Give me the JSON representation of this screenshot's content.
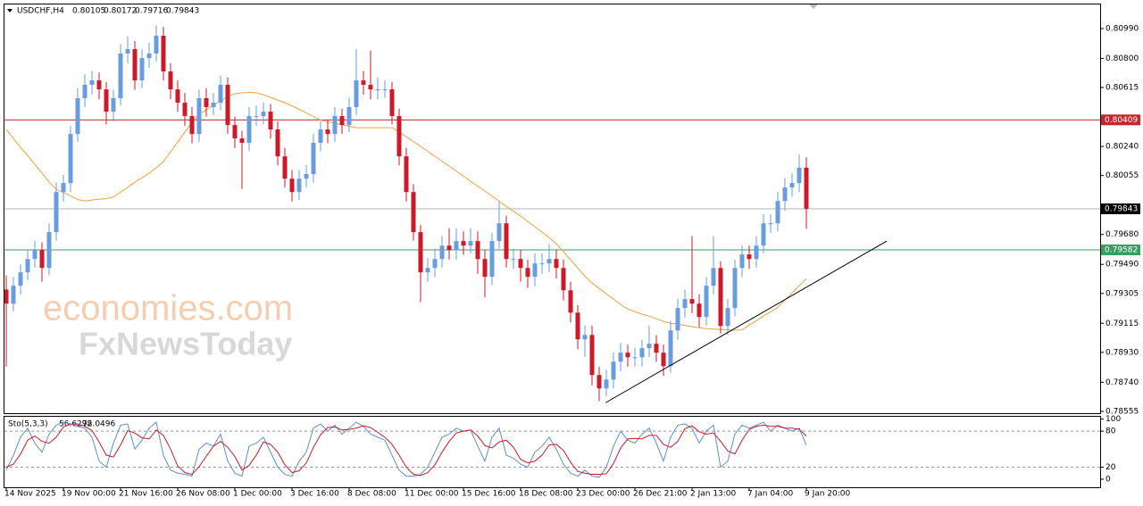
{
  "chart_data": {
    "type": "candlestick",
    "title": "USDCHF,H4",
    "categories": [
      "14 Nov 2025",
      null,
      null,
      null,
      null,
      null,
      null,
      null,
      "19 Nov 00:00",
      null,
      null,
      null,
      null,
      null,
      null,
      null,
      "21 Nov 16:00",
      null,
      null,
      null,
      null,
      null,
      null,
      null,
      "26 Nov 08:00",
      null,
      null,
      null,
      null,
      null,
      null,
      null,
      "1 Dec 00:00",
      null,
      null,
      null,
      null,
      null,
      null,
      null,
      "3 Dec 16:00",
      null,
      null,
      null,
      null,
      null,
      null,
      null,
      "8 Dec 08:00",
      null,
      null,
      null,
      null,
      null,
      null,
      null,
      "11 Dec 00:00",
      null,
      null,
      null,
      null,
      null,
      null,
      null,
      "15 Dec 16:00",
      null,
      null,
      null,
      null,
      null,
      null,
      null,
      "18 Dec 08:00",
      null,
      null,
      null,
      null,
      null,
      null,
      null,
      "23 Dec 00:00",
      null,
      null,
      null,
      null,
      null,
      null,
      null,
      "26 Dec 21:00",
      null,
      null,
      null,
      null,
      null,
      null,
      null,
      "2 Jan 13:00",
      null,
      null,
      null,
      null,
      null,
      null,
      null,
      "7 Jan 04:00",
      null,
      null,
      null,
      null,
      null,
      null,
      null,
      "9 Jan 20:00"
    ],
    "open": [
      0.7933,
      0.7924,
      0.79354,
      0.79439,
      0.79524,
      0.79581,
      0.79467,
      0.79695,
      0.7995,
      0.80007,
      0.80319,
      0.80547,
      0.80632,
      0.8066,
      0.80603,
      0.80461,
      0.80547,
      0.80831,
      0.80859,
      0.8066,
      0.80802,
      0.80831,
      0.80944,
      0.80717,
      0.80603,
      0.80518,
      0.80433,
      0.80319,
      0.80547,
      0.8049,
      0.80518,
      0.80632,
      0.80376,
      0.80291,
      0.80263,
      0.80433,
      0.80433,
      0.80461,
      0.80348,
      0.80177,
      0.80035,
      0.7995,
      0.80035,
      0.80064,
      0.80263,
      0.80348,
      0.80319,
      0.80433,
      0.80376,
      0.8049,
      0.8066,
      0.80632,
      0.80603,
      0.80603,
      0.80603,
      0.80433,
      0.80177,
      0.7995,
      0.79695,
      0.79439,
      0.79467,
      0.79524,
      0.79609,
      0.79581,
      0.79638,
      0.79609,
      0.79638,
      0.79524,
      0.79411,
      0.79638,
      0.79751,
      0.79524,
      0.79524,
      0.79467,
      0.79411,
      0.79496,
      0.79496,
      0.79524,
      0.79467,
      0.79325,
      0.79183,
      0.79013,
      0.79041,
      0.78786,
      0.78701,
      0.78757,
      0.78871,
      0.78928,
      0.78899,
      0.78899,
      0.78957,
      0.78985,
      0.78928,
      0.78843,
      0.7907,
      0.79212,
      0.79269,
      0.7924,
      0.79155,
      0.79354,
      0.79467,
      0.79098,
      0.79212,
      0.79467,
      0.79553,
      0.79524,
      0.79609,
      0.79751,
      0.79751,
      0.79893,
      0.79979,
      0.80007,
      0.80105
    ],
    "high": [
      0.7942,
      0.7941,
      0.7949,
      0.7958,
      0.7964,
      0.7963,
      0.7975,
      0.8001,
      0.8006,
      0.8037,
      0.8061,
      0.807,
      0.8072,
      0.8071,
      0.8065,
      0.806,
      0.8089,
      0.8094,
      0.8091,
      0.8086,
      0.809,
      0.8101,
      0.81,
      0.8077,
      0.8066,
      0.8058,
      0.8049,
      0.806,
      0.8061,
      0.8058,
      0.8069,
      0.8068,
      0.8043,
      0.8034,
      0.8049,
      0.805,
      0.8052,
      0.8051,
      0.804,
      0.8023,
      0.8009,
      0.8009,
      0.8012,
      0.8032,
      0.804,
      0.8041,
      0.8049,
      0.8048,
      0.8055,
      0.8086,
      0.8072,
      0.8085,
      0.8068,
      0.8066,
      0.8065,
      0.8048,
      0.8023,
      0.8,
      0.7974,
      0.7953,
      0.7959,
      0.7967,
      0.7972,
      0.7972,
      0.797,
      0.7972,
      0.797,
      0.7958,
      0.7969,
      0.7989,
      0.798,
      0.7959,
      0.7958,
      0.7952,
      0.7956,
      0.7956,
      0.7962,
      0.7958,
      0.7952,
      0.7938,
      0.7923,
      0.791,
      0.791,
      0.7884,
      0.7882,
      0.7893,
      0.7899,
      0.7898,
      0.7896,
      0.7901,
      0.791,
      0.7904,
      0.7898,
      0.7913,
      0.7927,
      0.7933,
      0.7967,
      0.793,
      0.7941,
      0.7967,
      0.7951,
      0.7927,
      0.7952,
      0.7961,
      0.7961,
      0.7967,
      0.7981,
      0.7981,
      0.7995,
      0.8004,
      0.8007,
      0.8019,
      0.80172
    ],
    "low": [
      0.7884,
      0.7919,
      0.793,
      0.7939,
      0.7947,
      0.7938,
      0.7942,
      0.7964,
      0.7989,
      0.7995,
      0.8027,
      0.8049,
      0.8057,
      0.8054,
      0.8038,
      0.804,
      0.805,
      0.8077,
      0.806,
      0.8061,
      0.8074,
      0.8078,
      0.8066,
      0.8054,
      0.8046,
      0.8037,
      0.8026,
      0.8027,
      0.8043,
      0.8044,
      0.8047,
      0.8032,
      0.8023,
      0.7997,
      0.8021,
      0.8037,
      0.8038,
      0.8029,
      0.8012,
      0.7998,
      0.7989,
      0.799,
      0.7998,
      0.8001,
      0.8021,
      0.8026,
      0.8027,
      0.8032,
      0.8033,
      0.8044,
      0.8057,
      0.8054,
      0.8054,
      0.8055,
      0.8038,
      0.8012,
      0.7989,
      0.7964,
      0.7925,
      0.7938,
      0.7941,
      0.7947,
      0.7952,
      0.7952,
      0.7955,
      0.7956,
      0.7943,
      0.7928,
      0.7936,
      0.7959,
      0.7947,
      0.7946,
      0.7938,
      0.7934,
      0.7935,
      0.7943,
      0.7944,
      0.794,
      0.7926,
      0.7912,
      0.7895,
      0.789,
      0.7872,
      0.7862,
      0.7865,
      0.787,
      0.7881,
      0.7884,
      0.7884,
      0.7884,
      0.789,
      0.7887,
      0.7878,
      0.788,
      0.7901,
      0.7915,
      0.7918,
      0.7909,
      0.791,
      0.793,
      0.7905,
      0.7904,
      0.7916,
      0.7941,
      0.7946,
      0.7947,
      0.7956,
      0.7969,
      0.797,
      0.7983,
      0.7992,
      0.7995,
      0.79716
    ],
    "close": [
      0.7924,
      0.79354,
      0.79439,
      0.79524,
      0.79581,
      0.79467,
      0.79695,
      0.7995,
      0.80007,
      0.80319,
      0.80547,
      0.80632,
      0.8066,
      0.80603,
      0.80461,
      0.80547,
      0.80831,
      0.80859,
      0.8066,
      0.80802,
      0.80831,
      0.80944,
      0.80717,
      0.80603,
      0.80518,
      0.80433,
      0.80319,
      0.80547,
      0.8049,
      0.80518,
      0.80632,
      0.80376,
      0.80291,
      0.80263,
      0.80433,
      0.80433,
      0.80461,
      0.80348,
      0.80177,
      0.80035,
      0.7995,
      0.80035,
      0.80064,
      0.80263,
      0.80348,
      0.80319,
      0.80433,
      0.80376,
      0.8049,
      0.8066,
      0.80632,
      0.80603,
      0.80603,
      0.80603,
      0.80433,
      0.80177,
      0.7995,
      0.79695,
      0.79439,
      0.79467,
      0.79524,
      0.79609,
      0.79581,
      0.79638,
      0.79609,
      0.79638,
      0.79524,
      0.79411,
      0.79638,
      0.79751,
      0.79524,
      0.79524,
      0.79467,
      0.79411,
      0.79496,
      0.79496,
      0.79524,
      0.79467,
      0.79325,
      0.79183,
      0.79013,
      0.79041,
      0.78786,
      0.78701,
      0.78757,
      0.78871,
      0.78928,
      0.78899,
      0.78899,
      0.78957,
      0.78985,
      0.78928,
      0.78843,
      0.7907,
      0.79212,
      0.79269,
      0.7924,
      0.79155,
      0.79354,
      0.79467,
      0.79098,
      0.79212,
      0.79467,
      0.79553,
      0.79524,
      0.79609,
      0.79751,
      0.79751,
      0.79893,
      0.79979,
      0.80007,
      0.80105,
      0.79843
    ],
    "up_color": "#6a9ce0",
    "down_color": "#cc1a2a",
    "ylim": [
      0.78549,
      0.81143
    ],
    "yticks": [
      {
        "value": 0.8099,
        "label": "0.80990"
      },
      {
        "value": 0.808,
        "label": "0.80800"
      },
      0.80615,
      {
        "value": 0.8024,
        "label": "0.80240"
      },
      0.80055,
      {
        "value": 0.7968,
        "label": "0.79680"
      },
      {
        "value": 0.7949,
        "label": "0.79490"
      },
      0.79305,
      0.79115,
      {
        "value": 0.7893,
        "label": "0.78930"
      },
      {
        "value": 0.7874,
        "label": "0.78740"
      },
      0.78555
    ],
    "moving_average": {
      "color": "#f0a040",
      "values": [
        0.80348,
        0.80291,
        0.80234,
        0.80183,
        0.80126,
        0.8007,
        0.80013,
        0.79967,
        0.79947,
        0.79925,
        0.79902,
        0.79893,
        0.79899,
        0.79905,
        0.79908,
        0.79918,
        0.7995,
        0.79979,
        0.80013,
        0.80041,
        0.8007,
        0.80104,
        0.80143,
        0.80206,
        0.80268,
        0.80331,
        0.80393,
        0.80444,
        0.80473,
        0.80501,
        0.8053,
        0.80558,
        0.80575,
        0.80581,
        0.80584,
        0.80582,
        0.80569,
        0.80552,
        0.80535,
        0.80518,
        0.80498,
        0.80476,
        0.80453,
        0.8043,
        0.80407,
        0.80397,
        0.80388,
        0.80378,
        0.80369,
        0.80359,
        0.80359,
        0.80359,
        0.80359,
        0.80359,
        0.80359,
        0.80333,
        0.80302,
        0.80271,
        0.8024,
        0.8021,
        0.80177,
        0.80146,
        0.80115,
        0.80083,
        0.80051,
        0.80018,
        0.79987,
        0.79956,
        0.79924,
        0.79892,
        0.79859,
        0.79828,
        0.79797,
        0.79763,
        0.79729,
        0.79695,
        0.79661,
        0.79621,
        0.7957,
        0.79519,
        0.79467,
        0.79416,
        0.79371,
        0.79337,
        0.79303,
        0.79269,
        0.79235,
        0.79206,
        0.79189,
        0.79172,
        0.79161,
        0.79144,
        0.79127,
        0.79115,
        0.7911,
        0.79101,
        0.79093,
        0.79087,
        0.79081,
        0.79078,
        0.79076,
        0.79074,
        0.79071,
        0.79073,
        0.79104,
        0.79132,
        0.79161,
        0.79189,
        0.79217,
        0.79263,
        0.79308,
        0.79354,
        0.79399
      ]
    },
    "hlines": [
      {
        "value": 0.80409,
        "color": "#c0282d"
      },
      {
        "value": 0.79582,
        "color": "#3a9e62"
      }
    ],
    "current_price_color": "#b4b4b4",
    "trendline": {
      "color": "#000000",
      "x": [
        83.9,
        123.25
      ],
      "y": [
        0.7861,
        0.79638
      ]
    },
    "watermark": [
      "economies.com",
      "FxNewsToday"
    ],
    "stochastic": {
      "type": "line",
      "title": "Sto(5,3,3)",
      "ylim": [
        -12,
        104
      ],
      "yticks": [
        100,
        80,
        20,
        0
      ],
      "levels": [
        80,
        20
      ],
      "series": [
        {
          "color": "#5b8fd8",
          "values": [
            15,
            40,
            70,
            85,
            60,
            45,
            75,
            90,
            95,
            92,
            88,
            85,
            70,
            30,
            20,
            60,
            90,
            92,
            50,
            65,
            85,
            95,
            40,
            15,
            10,
            8,
            5,
            50,
            60,
            55,
            75,
            30,
            10,
            5,
            55,
            60,
            70,
            45,
            20,
            8,
            5,
            30,
            45,
            85,
            92,
            80,
            90,
            75,
            85,
            95,
            88,
            75,
            70,
            65,
            40,
            15,
            5,
            5,
            8,
            20,
            45,
            70,
            75,
            85,
            80,
            82,
            55,
            30,
            70,
            85,
            40,
            35,
            25,
            20,
            45,
            55,
            70,
            50,
            25,
            10,
            5,
            15,
            5,
            3,
            20,
            55,
            80,
            65,
            60,
            75,
            85,
            60,
            30,
            70,
            90,
            92,
            85,
            60,
            80,
            90,
            20,
            30,
            75,
            90,
            85,
            90,
            95,
            80,
            90,
            85,
            80,
            85,
            56.6298
          ]
        },
        {
          "color": "#cc1a2a",
          "values": [
            20,
            25,
            42,
            65,
            72,
            63,
            60,
            70,
            87,
            92,
            92,
            88,
            81,
            62,
            40,
            37,
            57,
            81,
            77,
            69,
            67,
            82,
            73,
            50,
            22,
            11,
            8,
            21,
            38,
            55,
            63,
            53,
            38,
            15,
            23,
            40,
            62,
            58,
            45,
            24,
            11,
            14,
            27,
            53,
            74,
            86,
            87,
            82,
            83,
            85,
            89,
            86,
            78,
            70,
            58,
            40,
            20,
            8,
            6,
            11,
            24,
            45,
            63,
            77,
            80,
            82,
            72,
            56,
            52,
            62,
            65,
            53,
            33,
            27,
            30,
            40,
            57,
            58,
            48,
            28,
            13,
            10,
            8,
            8,
            9,
            26,
            52,
            67,
            68,
            67,
            73,
            73,
            58,
            53,
            63,
            84,
            89,
            79,
            75,
            77,
            63,
            47,
            42,
            65,
            83,
            88,
            90,
            88,
            88,
            85,
            85,
            83,
            72.0496
          ]
        }
      ]
    }
  }
}
